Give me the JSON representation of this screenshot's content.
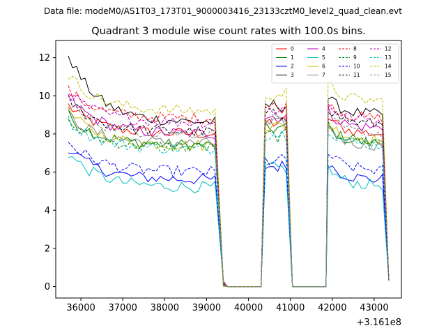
{
  "figure": {
    "suptitle": "Data file: modeM0/AS1T03_173T01_9000003416_23133cztM0_level2_quad_clean.evt"
  },
  "chart_data": {
    "type": "line",
    "title": "Quadrant 3 module wise count rates with 100.0s bins.",
    "xlabel": "",
    "ylabel": "",
    "x_offset_label": "+3.161e8",
    "xlim": [
      35400,
      43650
    ],
    "ylim": [
      -0.6,
      12.9
    ],
    "xticks": [
      36000,
      37000,
      38000,
      39000,
      40000,
      41000,
      42000,
      43000
    ],
    "xtick_labels": [
      "36000",
      "37000",
      "38000",
      "39000",
      "40000",
      "41000",
      "42000",
      "43000"
    ],
    "yticks": [
      0,
      2,
      4,
      6,
      8,
      10,
      12
    ],
    "ytick_labels": [
      "0",
      "2",
      "4",
      "6",
      "8",
      "10",
      "12"
    ],
    "grid": false,
    "legend_position": "top-right",
    "segments": [
      {
        "start": 35700,
        "end": 39200,
        "ramp_down_to": 39400
      },
      {
        "start": 40400,
        "end": 40950,
        "ramp_up_from": 40350,
        "ramp_down_to": 41050
      },
      {
        "start": 41900,
        "end": 43250,
        "ramp_up_from": 41850,
        "ramp_down_to": 43350
      }
    ],
    "series": [
      {
        "name": "0",
        "color": "#ff0000",
        "dashed": false,
        "start_level": 9.5,
        "plateau_level": 8.0,
        "seg2_level": 8.6,
        "seg3_level": 8.0
      },
      {
        "name": "1",
        "color": "#008000",
        "dashed": false,
        "start_level": 9.0,
        "plateau_level": 7.4,
        "seg2_level": 8.3,
        "seg3_level": 7.5
      },
      {
        "name": "2",
        "color": "#0000ff",
        "dashed": false,
        "start_level": 7.3,
        "plateau_level": 5.6,
        "seg2_level": 6.3,
        "seg3_level": 5.6
      },
      {
        "name": "3",
        "color": "#000000",
        "dashed": false,
        "start_level": 12.2,
        "plateau_level": 8.6,
        "seg2_level": 9.5,
        "seg3_level": 9.0
      },
      {
        "name": "4",
        "color": "#bf00bf",
        "dashed": false,
        "start_level": 10.0,
        "plateau_level": 8.0,
        "seg2_level": 8.9,
        "seg3_level": 8.3
      },
      {
        "name": "5",
        "color": "#00bfbf",
        "dashed": false,
        "start_level": 7.0,
        "plateau_level": 5.2,
        "seg2_level": 6.2,
        "seg3_level": 5.3
      },
      {
        "name": "6",
        "color": "#bfbf00",
        "dashed": false,
        "start_level": 9.2,
        "plateau_level": 7.4,
        "seg2_level": 8.4,
        "seg3_level": 7.7
      },
      {
        "name": "7",
        "color": "#808080",
        "dashed": false,
        "start_level": 9.0,
        "plateau_level": 7.5,
        "seg2_level": 8.5,
        "seg3_level": 7.4
      },
      {
        "name": "8",
        "color": "#ff0000",
        "dashed": true,
        "start_level": 10.3,
        "plateau_level": 8.8,
        "seg2_level": 9.4,
        "seg3_level": 8.8
      },
      {
        "name": "9",
        "color": "#008000",
        "dashed": true,
        "start_level": 8.6,
        "plateau_level": 7.3,
        "seg2_level": 7.9,
        "seg3_level": 7.6
      },
      {
        "name": "10",
        "color": "#0000ff",
        "dashed": true,
        "start_level": 7.6,
        "plateau_level": 6.0,
        "seg2_level": 6.6,
        "seg3_level": 6.1
      },
      {
        "name": "11",
        "color": "#000000",
        "dashed": true,
        "start_level": 9.8,
        "plateau_level": 8.1,
        "seg2_level": 9.0,
        "seg3_level": 8.5
      },
      {
        "name": "12",
        "color": "#bf00bf",
        "dashed": true,
        "start_level": 10.2,
        "plateau_level": 8.6,
        "seg2_level": 9.3,
        "seg3_level": 8.7
      },
      {
        "name": "13",
        "color": "#00bfbf",
        "dashed": true,
        "start_level": 8.7,
        "plateau_level": 7.2,
        "seg2_level": 8.0,
        "seg3_level": 7.4
      },
      {
        "name": "14",
        "color": "#bfbf00",
        "dashed": true,
        "start_level": 11.1,
        "plateau_level": 9.2,
        "seg2_level": 10.1,
        "seg3_level": 9.7
      },
      {
        "name": "15",
        "color": "#808080",
        "dashed": true,
        "start_level": 9.6,
        "plateau_level": 8.0,
        "seg2_level": 8.8,
        "seg3_level": 8.0
      }
    ]
  }
}
